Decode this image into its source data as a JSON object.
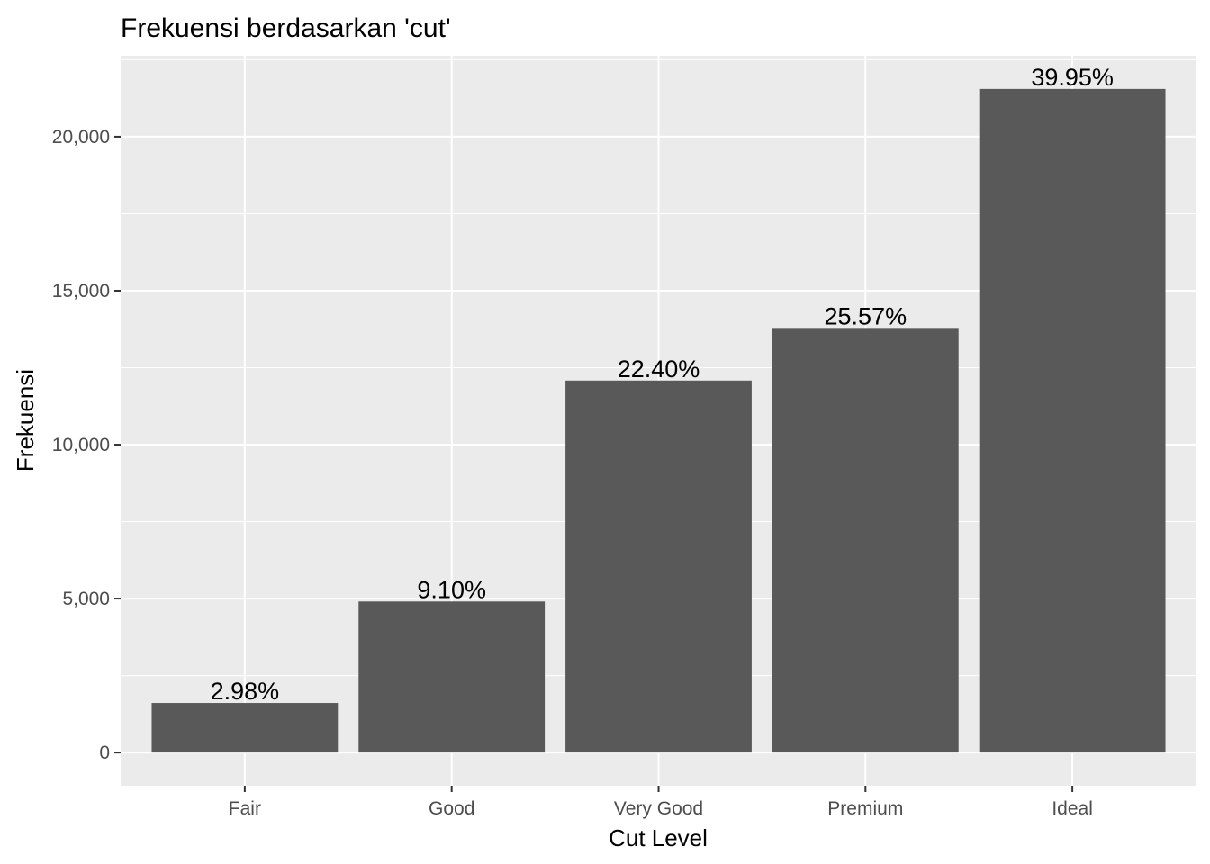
{
  "chart_data": {
    "type": "bar",
    "title": "Frekuensi berdasarkan 'cut'",
    "xlabel": "Cut Level",
    "ylabel": "Frekuensi",
    "categories": [
      "Fair",
      "Good",
      "Very Good",
      "Premium",
      "Ideal"
    ],
    "values": [
      1610,
      4906,
      12082,
      13791,
      21551
    ],
    "data_labels": [
      "2.98%",
      "9.10%",
      "22.40%",
      "25.57%",
      "39.95%"
    ],
    "y_ticks": [
      0,
      5000,
      10000,
      15000,
      20000
    ],
    "y_tick_labels": [
      "0",
      "5,000",
      "10,000",
      "15,000",
      "20,000"
    ],
    "ylim": [
      -1078,
      22629
    ],
    "grid": true,
    "colors": {
      "panel_background": "#ebebeb",
      "grid_line": "#ffffff",
      "bar_fill": "#595959",
      "tick_mark": "#333333",
      "tick_label": "#4d4d4d",
      "text": "#000000"
    }
  }
}
